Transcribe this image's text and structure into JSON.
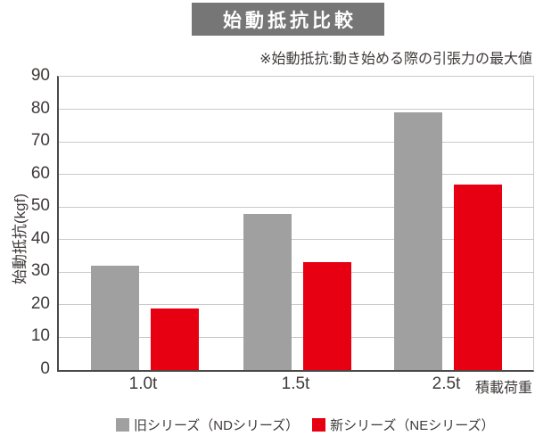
{
  "chart_data": {
    "type": "bar",
    "title": "始動抵抗比較",
    "note": "※始動抵抗:動き始める際の引張力の最大値",
    "ylabel": "始動抵抗(kgf)",
    "xlabel_right": "積載荷重",
    "categories": [
      "1.0t",
      "1.5t",
      "2.5t"
    ],
    "series": [
      {
        "key": "nd-series",
        "name": "旧シリーズ（NDシリーズ）",
        "color": "#a0a0a1",
        "values": [
          32,
          48,
          79
        ]
      },
      {
        "key": "ne-series",
        "name": "新シリーズ（NEシリーズ）",
        "color": "#e60012",
        "values": [
          19,
          33,
          57
        ]
      }
    ],
    "ylim": [
      0,
      90
    ],
    "ytick_step": 10,
    "grid": true,
    "legend_position": "bottom",
    "colors": {
      "title_box_bg": "#767676",
      "title_text": "#ffffff",
      "gridline": "#c9caca",
      "axis": "#4b4948",
      "text": "#3e3a39"
    }
  }
}
